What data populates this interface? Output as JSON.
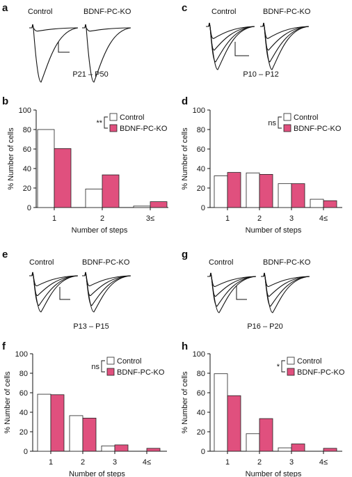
{
  "colors": {
    "control": "#ffffff",
    "ko": "#e0507e",
    "stroke": "#222222"
  },
  "trace_panels": [
    {
      "letter": "a",
      "label1": "Control",
      "label2": "BDNF-PC-KO",
      "age": "P21 – P50"
    },
    {
      "letter": "c",
      "label1": "Control",
      "label2": "BDNF-PC-KO",
      "age": "P10 – P12"
    },
    {
      "letter": "e",
      "label1": "Control",
      "label2": "BDNF-PC-KO",
      "age": "P13 – P15"
    },
    {
      "letter": "g",
      "label1": "Control",
      "label2": "BDNF-PC-KO",
      "age": "P16 – P20"
    }
  ],
  "chart_data": [
    {
      "panel": "b",
      "type": "bar",
      "categories": [
        "1",
        "2",
        "3≤"
      ],
      "series": [
        {
          "name": "Control",
          "values": [
            80,
            19,
            1.5
          ]
        },
        {
          "name": "BDNF-PC-KO",
          "values": [
            60.5,
            33.5,
            6
          ]
        }
      ],
      "xlabel": "Number of steps",
      "ylabel": "% Number of cells",
      "ylim": [
        0,
        100
      ],
      "yticks": [
        "0",
        "20",
        "40",
        "60",
        "80",
        "100"
      ],
      "significance": "**",
      "legend": "top-right"
    },
    {
      "panel": "d",
      "type": "bar",
      "categories": [
        "1",
        "2",
        "3",
        "4≤"
      ],
      "series": [
        {
          "name": "Control",
          "values": [
            32.5,
            35.5,
            24.5,
            8.5
          ]
        },
        {
          "name": "BDNF-PC-KO",
          "values": [
            36,
            34,
            24.5,
            7
          ]
        }
      ],
      "xlabel": "Number of steps",
      "ylabel": "% Number of cells",
      "ylim": [
        0,
        100
      ],
      "yticks": [
        "0",
        "20",
        "40",
        "60",
        "80",
        "100"
      ],
      "significance": "ns",
      "legend": "top-right"
    },
    {
      "panel": "f",
      "type": "bar",
      "categories": [
        "1",
        "2",
        "3",
        "4≤"
      ],
      "series": [
        {
          "name": "Control",
          "values": [
            58.5,
            36.5,
            5.5,
            0
          ]
        },
        {
          "name": "BDNF-PC-KO",
          "values": [
            58,
            34,
            6.5,
            3
          ]
        }
      ],
      "xlabel": "Number of steps",
      "ylabel": "% Number of cells",
      "ylim": [
        0,
        100
      ],
      "yticks": [
        "0",
        "20",
        "40",
        "60",
        "80",
        "100"
      ],
      "significance": "ns",
      "legend": "top-right"
    },
    {
      "panel": "h",
      "type": "bar",
      "categories": [
        "1",
        "2",
        "3",
        "4≤"
      ],
      "series": [
        {
          "name": "Control",
          "values": [
            79.5,
            18,
            3.5,
            0
          ]
        },
        {
          "name": "BDNF-PC-KO",
          "values": [
            57,
            33.5,
            7.5,
            3
          ]
        }
      ],
      "xlabel": "Number of steps",
      "ylabel": "% Number of cells",
      "ylim": [
        0,
        100
      ],
      "yticks": [
        "0",
        "20",
        "40",
        "60",
        "80",
        "100"
      ],
      "significance": "*",
      "legend": "top-right"
    }
  ]
}
